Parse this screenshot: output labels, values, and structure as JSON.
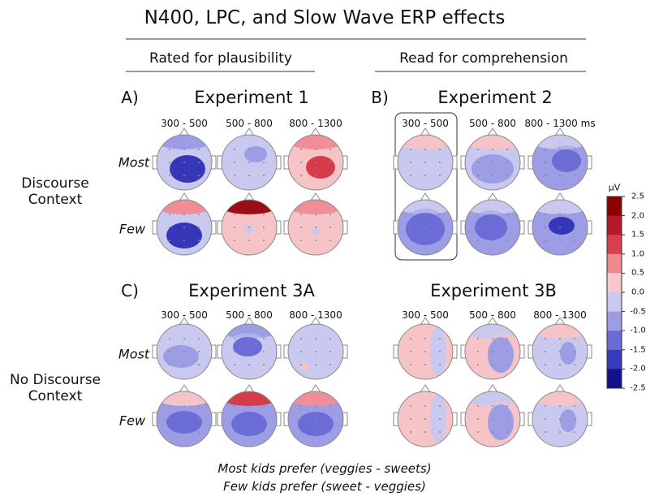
{
  "title": "N400, LPC, and Slow Wave ERP effects",
  "columns": [
    "Rated for plausibility",
    "Read for comprehension"
  ],
  "rows": [
    "Discourse Context",
    "No Discourse Context"
  ],
  "conditions": [
    "Most",
    "Few"
  ],
  "panels": [
    {
      "letter": "A)",
      "title": "Experiment 1",
      "windows": [
        "300 - 500",
        "500 - 800",
        "800 - 1300"
      ]
    },
    {
      "letter": "B)",
      "title": "Experiment 2",
      "windows": [
        "300 - 500",
        "500 - 800",
        "800 - 1300 ms"
      ]
    },
    {
      "letter": "C)",
      "title": "Experiment 3A",
      "windows": [
        "300 - 500",
        "500 - 800",
        "800 - 1300"
      ]
    },
    {
      "title": "Experiment 3B",
      "windows": [
        "300 - 500",
        "500 - 800",
        "800 - 1300"
      ]
    }
  ],
  "colorbar": {
    "unit": "µV",
    "ticks": [
      "2.5",
      "2.0",
      "1.5",
      "1.0",
      "0.5",
      "0.0",
      "-0.5",
      "-1.0",
      "-1.5",
      "-2.0",
      "-2.5"
    ]
  },
  "caption": [
    "Most kids prefer (veggies - sweets)",
    "Few kids prefer (sweet - veggies)"
  ]
}
